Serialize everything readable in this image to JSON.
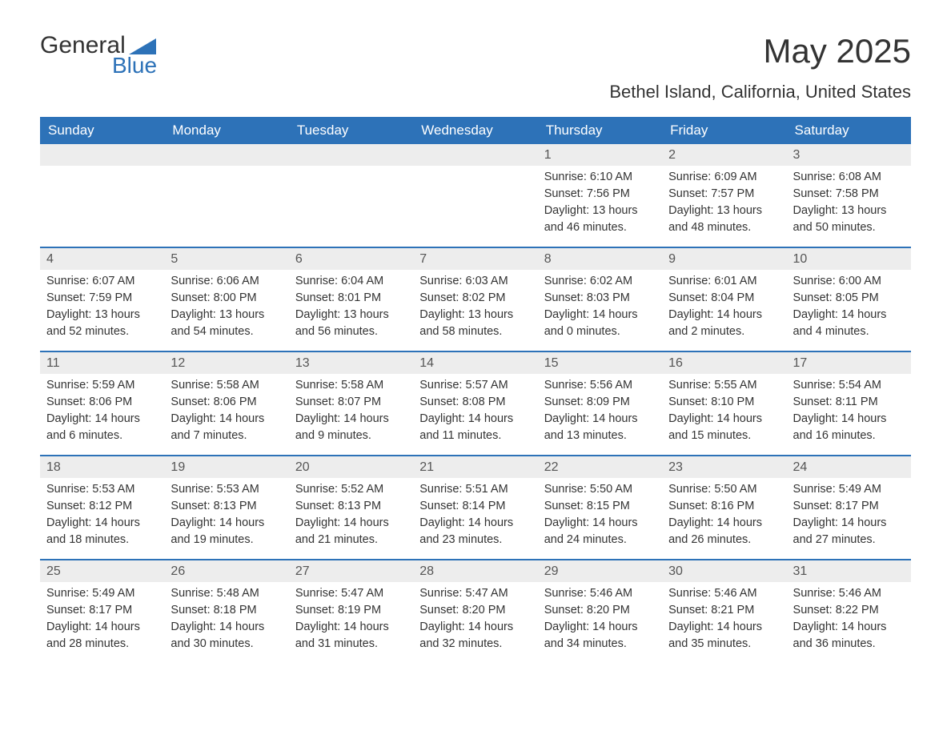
{
  "brand": {
    "word1": "General",
    "word2": "Blue",
    "word1_color": "#333333",
    "word2_color": "#2d72b8",
    "icon_color": "#2d72b8"
  },
  "title": "May 2025",
  "subtitle": "Bethel Island, California, United States",
  "colors": {
    "header_bg": "#2d72b8",
    "header_text": "#ffffff",
    "daynum_bg": "#ededed",
    "daynum_text": "#555555",
    "body_text": "#333333",
    "row_border": "#2d72b8",
    "page_bg": "#ffffff"
  },
  "typography": {
    "title_fontsize": 42,
    "subtitle_fontsize": 22,
    "weekday_fontsize": 17,
    "daynum_fontsize": 16,
    "body_fontsize": 14.5,
    "font_family": "Arial"
  },
  "layout": {
    "columns": 7,
    "rows": 5,
    "first_day_column_index": 4
  },
  "weekdays": [
    "Sunday",
    "Monday",
    "Tuesday",
    "Wednesday",
    "Thursday",
    "Friday",
    "Saturday"
  ],
  "labels": {
    "sunrise": "Sunrise:",
    "sunset": "Sunset:",
    "daylight": "Daylight:"
  },
  "days": [
    {
      "n": "1",
      "sunrise": "6:10 AM",
      "sunset": "7:56 PM",
      "daylight": "13 hours and 46 minutes."
    },
    {
      "n": "2",
      "sunrise": "6:09 AM",
      "sunset": "7:57 PM",
      "daylight": "13 hours and 48 minutes."
    },
    {
      "n": "3",
      "sunrise": "6:08 AM",
      "sunset": "7:58 PM",
      "daylight": "13 hours and 50 minutes."
    },
    {
      "n": "4",
      "sunrise": "6:07 AM",
      "sunset": "7:59 PM",
      "daylight": "13 hours and 52 minutes."
    },
    {
      "n": "5",
      "sunrise": "6:06 AM",
      "sunset": "8:00 PM",
      "daylight": "13 hours and 54 minutes."
    },
    {
      "n": "6",
      "sunrise": "6:04 AM",
      "sunset": "8:01 PM",
      "daylight": "13 hours and 56 minutes."
    },
    {
      "n": "7",
      "sunrise": "6:03 AM",
      "sunset": "8:02 PM",
      "daylight": "13 hours and 58 minutes."
    },
    {
      "n": "8",
      "sunrise": "6:02 AM",
      "sunset": "8:03 PM",
      "daylight": "14 hours and 0 minutes."
    },
    {
      "n": "9",
      "sunrise": "6:01 AM",
      "sunset": "8:04 PM",
      "daylight": "14 hours and 2 minutes."
    },
    {
      "n": "10",
      "sunrise": "6:00 AM",
      "sunset": "8:05 PM",
      "daylight": "14 hours and 4 minutes."
    },
    {
      "n": "11",
      "sunrise": "5:59 AM",
      "sunset": "8:06 PM",
      "daylight": "14 hours and 6 minutes."
    },
    {
      "n": "12",
      "sunrise": "5:58 AM",
      "sunset": "8:06 PM",
      "daylight": "14 hours and 7 minutes."
    },
    {
      "n": "13",
      "sunrise": "5:58 AM",
      "sunset": "8:07 PM",
      "daylight": "14 hours and 9 minutes."
    },
    {
      "n": "14",
      "sunrise": "5:57 AM",
      "sunset": "8:08 PM",
      "daylight": "14 hours and 11 minutes."
    },
    {
      "n": "15",
      "sunrise": "5:56 AM",
      "sunset": "8:09 PM",
      "daylight": "14 hours and 13 minutes."
    },
    {
      "n": "16",
      "sunrise": "5:55 AM",
      "sunset": "8:10 PM",
      "daylight": "14 hours and 15 minutes."
    },
    {
      "n": "17",
      "sunrise": "5:54 AM",
      "sunset": "8:11 PM",
      "daylight": "14 hours and 16 minutes."
    },
    {
      "n": "18",
      "sunrise": "5:53 AM",
      "sunset": "8:12 PM",
      "daylight": "14 hours and 18 minutes."
    },
    {
      "n": "19",
      "sunrise": "5:53 AM",
      "sunset": "8:13 PM",
      "daylight": "14 hours and 19 minutes."
    },
    {
      "n": "20",
      "sunrise": "5:52 AM",
      "sunset": "8:13 PM",
      "daylight": "14 hours and 21 minutes."
    },
    {
      "n": "21",
      "sunrise": "5:51 AM",
      "sunset": "8:14 PM",
      "daylight": "14 hours and 23 minutes."
    },
    {
      "n": "22",
      "sunrise": "5:50 AM",
      "sunset": "8:15 PM",
      "daylight": "14 hours and 24 minutes."
    },
    {
      "n": "23",
      "sunrise": "5:50 AM",
      "sunset": "8:16 PM",
      "daylight": "14 hours and 26 minutes."
    },
    {
      "n": "24",
      "sunrise": "5:49 AM",
      "sunset": "8:17 PM",
      "daylight": "14 hours and 27 minutes."
    },
    {
      "n": "25",
      "sunrise": "5:49 AM",
      "sunset": "8:17 PM",
      "daylight": "14 hours and 28 minutes."
    },
    {
      "n": "26",
      "sunrise": "5:48 AM",
      "sunset": "8:18 PM",
      "daylight": "14 hours and 30 minutes."
    },
    {
      "n": "27",
      "sunrise": "5:47 AM",
      "sunset": "8:19 PM",
      "daylight": "14 hours and 31 minutes."
    },
    {
      "n": "28",
      "sunrise": "5:47 AM",
      "sunset": "8:20 PM",
      "daylight": "14 hours and 32 minutes."
    },
    {
      "n": "29",
      "sunrise": "5:46 AM",
      "sunset": "8:20 PM",
      "daylight": "14 hours and 34 minutes."
    },
    {
      "n": "30",
      "sunrise": "5:46 AM",
      "sunset": "8:21 PM",
      "daylight": "14 hours and 35 minutes."
    },
    {
      "n": "31",
      "sunrise": "5:46 AM",
      "sunset": "8:22 PM",
      "daylight": "14 hours and 36 minutes."
    }
  ]
}
